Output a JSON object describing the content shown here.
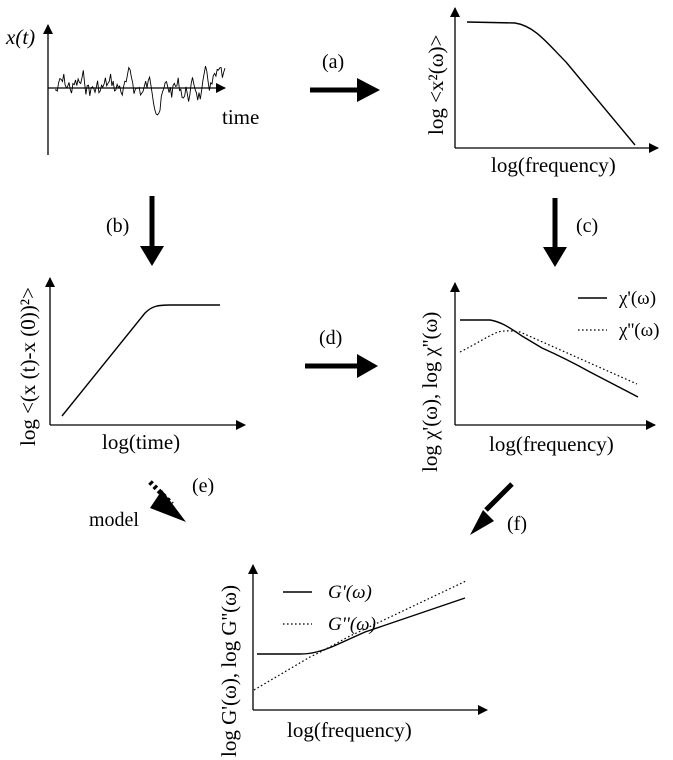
{
  "timeseries": {
    "ylabel": "x(t)",
    "xlabel": "time"
  },
  "psd": {
    "ylabel": "log <x²(ω)>",
    "xlabel": "log(frequency)"
  },
  "msd": {
    "ylabel": "log <(x (t)-x (0))²>",
    "xlabel": "log(time)"
  },
  "chi": {
    "ylabel": "log  χ'(ω), log  χ''(ω)",
    "xlabel": "log(frequency)",
    "legend": [
      "χ'(ω)",
      "χ''(ω)"
    ]
  },
  "modulus": {
    "ylabel": "log G'(ω), log  G''(ω)",
    "xlabel": "log(frequency)",
    "legend": [
      "G'(ω)",
      "G''(ω)"
    ]
  },
  "arrows": {
    "a": "(a)",
    "b": "(b)",
    "c": "(c)",
    "d": "(d)",
    "e": "(e)",
    "f": "(f)",
    "model": "model"
  }
}
